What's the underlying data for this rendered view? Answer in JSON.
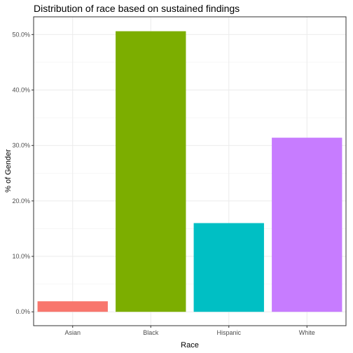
{
  "chart_data": {
    "type": "bar",
    "title": "Distribution of race based on sustained findings",
    "xlabel": "Race",
    "ylabel": "% of Gender",
    "categories": [
      "Asian",
      "Black",
      "Hispanic",
      "White"
    ],
    "values": [
      1.9,
      50.6,
      16.0,
      31.4
    ],
    "colors": [
      "#F8766D",
      "#7CAE00",
      "#00BFC4",
      "#C77CFF"
    ],
    "ylim": [
      -2.5,
      53.2
    ],
    "y_ticks": [
      0,
      10,
      20,
      30,
      40,
      50
    ],
    "y_tick_labels": [
      "0.0%",
      "10.0%",
      "20.0%",
      "30.0%",
      "40.0%",
      "50.0%"
    ],
    "grid": true
  }
}
